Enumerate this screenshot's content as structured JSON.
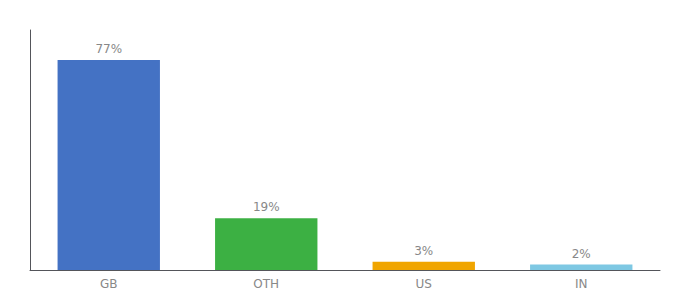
{
  "chart_data": {
    "type": "bar",
    "categories": [
      "GB",
      "OTH",
      "US",
      "IN"
    ],
    "values": [
      77,
      19,
      3,
      2
    ],
    "value_labels": [
      "77%",
      "19%",
      "3%",
      "2%"
    ],
    "colors": [
      "#4472c4",
      "#3cb043",
      "#f0a500",
      "#7ec8e3"
    ],
    "ylim": [
      0,
      88
    ],
    "grid": false,
    "data_labels": true,
    "tick_labels": "x"
  }
}
